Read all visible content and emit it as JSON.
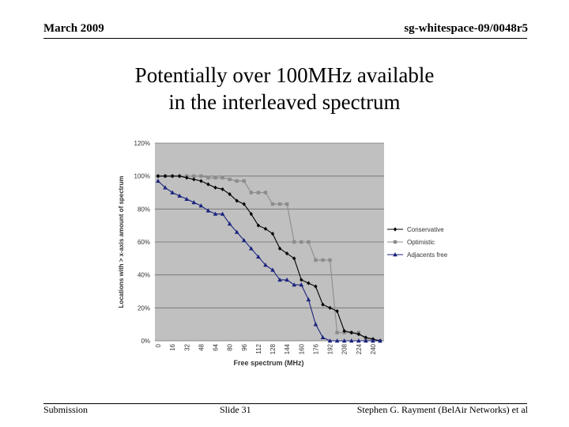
{
  "header": {
    "date": "March 2009",
    "doc_id": "sg-whitespace-09/0048r5"
  },
  "slide": {
    "title_line1": "Potentially over 100MHz available",
    "title_line2": "in the interleaved spectrum"
  },
  "footer": {
    "left": "Submission",
    "center": "Slide 31",
    "right": "Stephen G. Rayment (BelAir Networks) et al"
  },
  "chart_data": {
    "type": "line",
    "title": "",
    "xlabel": "Free spectrum (MHz)",
    "ylabel": "Locations with > x-axis amount of spectrum",
    "ylim": [
      0,
      120
    ],
    "y_ticks": [
      "0%",
      "20%",
      "40%",
      "60%",
      "80%",
      "100%",
      "120%"
    ],
    "x_tick_labels": [
      "0",
      "16",
      "32",
      "48",
      "64",
      "80",
      "96",
      "112",
      "128",
      "144",
      "160",
      "176",
      "192",
      "208",
      "224",
      "240"
    ],
    "x": [
      0,
      8,
      16,
      24,
      32,
      40,
      48,
      56,
      64,
      72,
      80,
      88,
      96,
      104,
      112,
      120,
      128,
      136,
      144,
      152,
      160,
      168,
      176,
      184,
      192,
      200,
      208,
      216,
      224,
      232,
      240,
      248
    ],
    "legend_position": "right",
    "grid": true,
    "background": "#c0c0c0",
    "series": [
      {
        "name": "Conservative",
        "color": "#000000",
        "marker": "diamond",
        "values": [
          100,
          100,
          100,
          100,
          99,
          98,
          97,
          95,
          93,
          92,
          89,
          85,
          83,
          77,
          70,
          68,
          65,
          56,
          53,
          50,
          37,
          35,
          33,
          22,
          20,
          18,
          6,
          5,
          4,
          2,
          1,
          0
        ]
      },
      {
        "name": "Optimistic",
        "color": "#8c8c8c",
        "marker": "square",
        "values": [
          100,
          100,
          100,
          100,
          100,
          100,
          100,
          99,
          99,
          99,
          98,
          97,
          97,
          90,
          90,
          90,
          83,
          83,
          83,
          60,
          60,
          60,
          49,
          49,
          49,
          5,
          5,
          5,
          5,
          1,
          1,
          0
        ]
      },
      {
        "name": "Adjacents free",
        "color": "#1a237e",
        "marker": "triangle",
        "values": [
          97,
          93,
          90,
          88,
          86,
          84,
          82,
          79,
          77,
          77,
          71,
          66,
          61,
          56,
          51,
          46,
          43,
          37,
          37,
          34,
          34,
          25,
          10,
          2,
          0,
          0,
          0,
          0,
          0,
          0,
          0,
          0
        ]
      }
    ]
  }
}
